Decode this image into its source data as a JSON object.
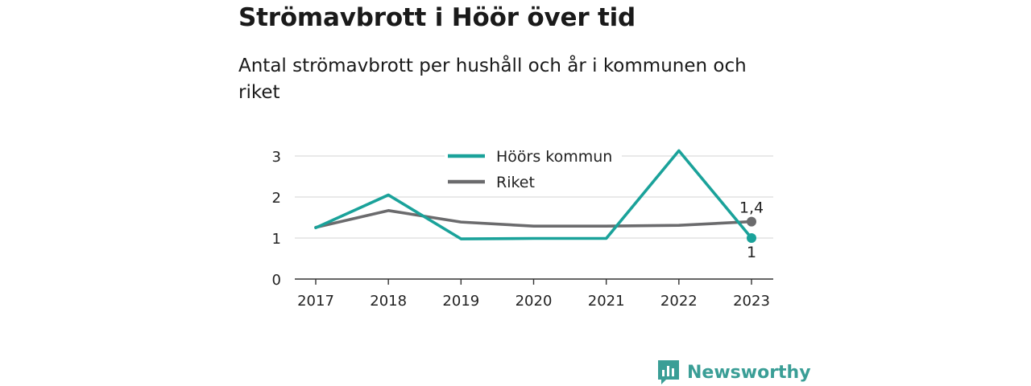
{
  "title": "Strömavbrott i Höör över tid",
  "subtitle": "Antal strömavbrott per hushåll och år i kommunen och riket",
  "brand": {
    "name": "Newsworthy",
    "icon": "bar-chart-bubble-icon",
    "color": "#3a9e96"
  },
  "chart_data": {
    "type": "line",
    "x": [
      "2017",
      "2018",
      "2019",
      "2020",
      "2021",
      "2022",
      "2023"
    ],
    "ylim": [
      0,
      3
    ],
    "yticks": [
      0,
      1,
      2,
      3
    ],
    "grid": true,
    "legend_position": "top-center",
    "series": [
      {
        "name": "Höörs kommun",
        "color": "#1aa29a",
        "values": [
          1.25,
          2.05,
          0.98,
          0.99,
          0.99,
          3.13,
          1.0
        ],
        "end_label": "1",
        "end_label_position": "below"
      },
      {
        "name": "Riket",
        "color": "#6b6b6d",
        "values": [
          1.26,
          1.67,
          1.39,
          1.29,
          1.29,
          1.31,
          1.4
        ],
        "end_label": "1,4",
        "end_label_position": "above"
      }
    ]
  }
}
